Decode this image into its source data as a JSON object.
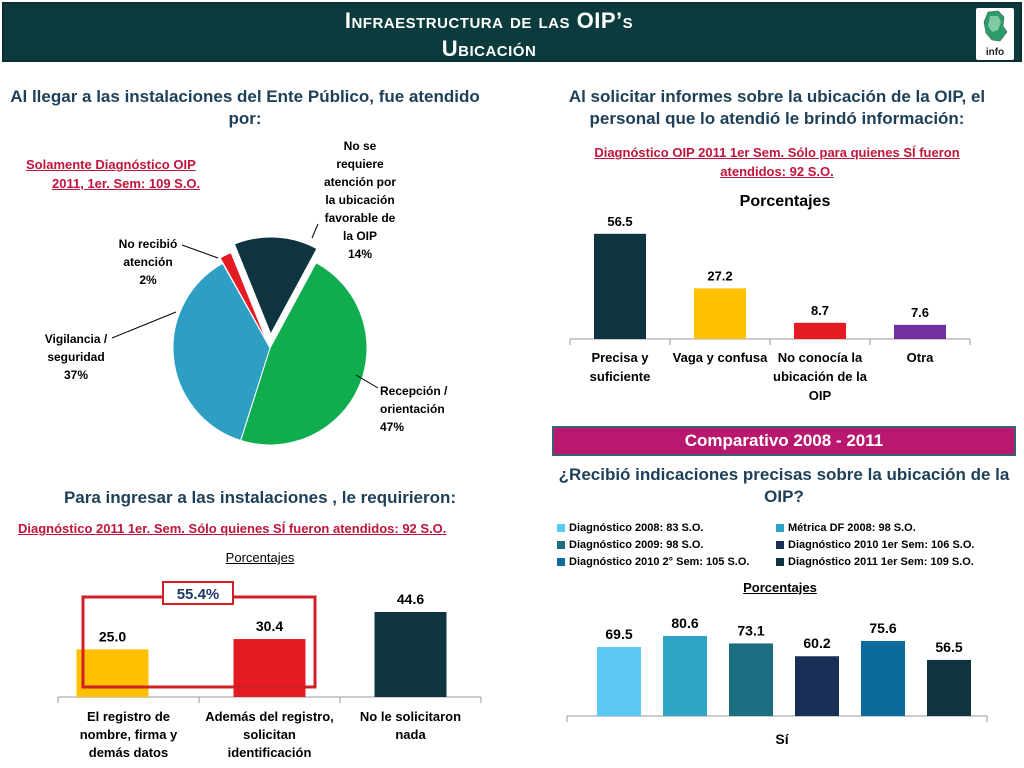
{
  "header": {
    "title_line1": "Infraestructura de las OIP’s",
    "title_line2": "Ubicación",
    "logo_text": "info"
  },
  "q1": {
    "title": "Al llegar a las instalaciones del Ente Público, fue atendido por:",
    "subtitle_l1": "Solamente Diagnóstico OIP",
    "subtitle_l2": "2011, 1er. Sem: 109 S.O."
  },
  "q2": {
    "title": "Al solicitar informes sobre la ubicación de la OIP, el personal que lo atendió le brindó información:",
    "subtitle_l1": "Diagnóstico OIP 2011 1er Sem. Sólo para quienes SÍ fueron",
    "subtitle_l2": "atendidos: 92 S.O.",
    "chart_title": "Porcentajes"
  },
  "q3": {
    "title": "Para ingresar a las instalaciones , le requirieron:",
    "subtitle": "Diagnóstico 2011 1er. Sem. Sólo quienes SÍ fueron atendidos: 92 S.O.",
    "chart_title": "Porcentajes",
    "group_label": "55.4%"
  },
  "q4": {
    "banner": "Comparativo 2008 - 2011",
    "title": "¿Recibió indicaciones precisas sobre la ubicación de la OIP?",
    "chart_title": "Porcentajes",
    "xlabel": "Sí"
  },
  "chart_data": [
    {
      "type": "pie",
      "slices": [
        {
          "label_lines": [
            "Recepción /",
            "orientación",
            "47%"
          ],
          "value": 47,
          "color": "#0fad4e"
        },
        {
          "label_lines": [
            "Vigilancia /",
            "seguridad",
            "37%"
          ],
          "value": 37,
          "color": "#2e9fc2"
        },
        {
          "label_lines": [
            "No recibió",
            "atención",
            "2%"
          ],
          "value": 2,
          "color": "#e51b23"
        },
        {
          "label_lines": [
            "No se",
            "requiere",
            "atención por",
            "la ubicación",
            "favorable de",
            "la OIP",
            "14%"
          ],
          "value": 14,
          "color": "#0d3440"
        }
      ]
    },
    {
      "type": "bar",
      "title": "Porcentajes",
      "categories": [
        [
          "Precisa y",
          "suficiente"
        ],
        [
          "Vaga y confusa"
        ],
        [
          "No conocía la",
          "ubicación de la",
          "OIP"
        ],
        [
          "Otra"
        ]
      ],
      "values": [
        56.5,
        27.2,
        8.7,
        7.6
      ],
      "value_labels": [
        "56.5",
        "27.2",
        "8.7",
        "7.6"
      ],
      "colors": [
        "#0d3440",
        "#ffc000",
        "#e51b23",
        "#7030a0"
      ],
      "ylim": [
        0,
        60
      ]
    },
    {
      "type": "bar",
      "title": "Porcentajes",
      "categories": [
        [
          "El registro de",
          "nombre, firma y",
          "demás datos"
        ],
        [
          "Además del registro,",
          "solicitan",
          "identificación"
        ],
        [
          "No le solicitaron",
          "nada"
        ]
      ],
      "values": [
        25.0,
        30.4,
        44.6
      ],
      "value_labels": [
        "25.0",
        "30.4",
        "44.6"
      ],
      "colors": [
        "#ffc000",
        "#e51b23",
        "#0d3440"
      ],
      "ylim": [
        0,
        50
      ]
    },
    {
      "type": "bar",
      "title": "Porcentajes",
      "xlabel": "Sí",
      "series": [
        {
          "name": "Diagnóstico 2008: 83 S.O.",
          "value": 69.5,
          "label": "69.5",
          "color": "#5bc8f5"
        },
        {
          "name": "Métrica DF 2008: 98 S.O.",
          "value": 80.6,
          "label": "80.6",
          "color": "#2fa4c4"
        },
        {
          "name": "Diagnóstico 2009: 98 S.O.",
          "value": 73.1,
          "label": "73.1",
          "color": "#1e6e82"
        },
        {
          "name": "Diagnóstico 2010 1er Sem: 106 S.O.",
          "value": 60.2,
          "label": "60.2",
          "color": "#1a2f55"
        },
        {
          "name": "Diagnóstico 2010 2° Sem: 105 S.O.",
          "value": 75.6,
          "label": "75.6",
          "color": "#0d6a9c"
        },
        {
          "name": "Diagnóstico 2011 1er Sem: 109 S.O.",
          "value": 56.5,
          "label": "56.5",
          "color": "#0d3440"
        }
      ],
      "ylim": [
        0,
        100
      ]
    }
  ]
}
